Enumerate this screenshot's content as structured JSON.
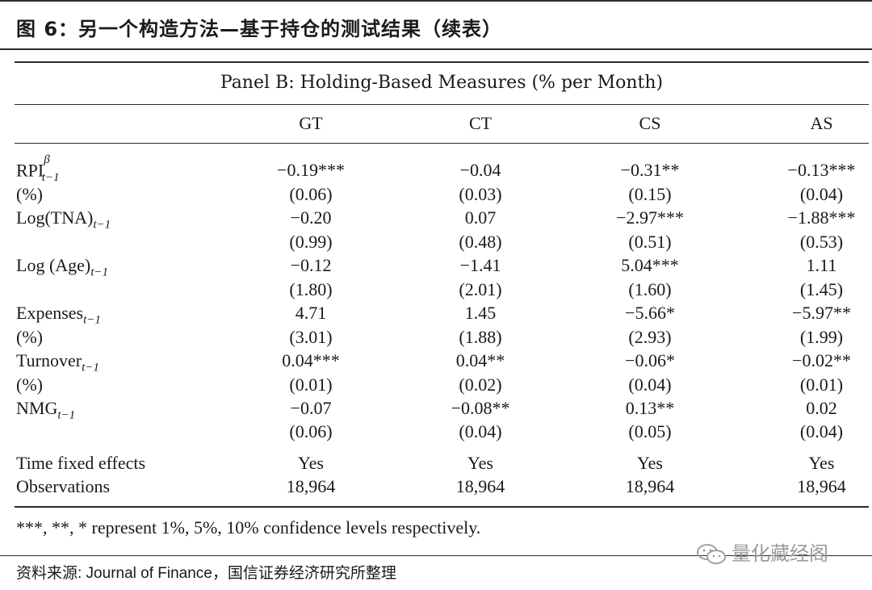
{
  "header": {
    "title": "图 6：另一个构造方法—基于持仓的测试结果（续表）"
  },
  "panel_title": "Panel B: Holding-Based Measures (% per Month)",
  "columns": [
    "GT",
    "CT",
    "CS",
    "AS"
  ],
  "rows": [
    {
      "label": "RPI",
      "sup": "β",
      "sub": "t−1",
      "coef": [
        "−0.19***",
        "−0.04",
        "−0.31**",
        "−0.13***"
      ]
    },
    {
      "label": "(%)",
      "coef": [
        "(0.06)",
        "(0.03)",
        "(0.15)",
        "(0.04)"
      ]
    },
    {
      "label": "Log(TNA)",
      "sub": "t−1",
      "coef": [
        "−0.20",
        "0.07",
        "−2.97***",
        "−1.88***"
      ]
    },
    {
      "label": "",
      "coef": [
        "(0.99)",
        "(0.48)",
        "(0.51)",
        "(0.53)"
      ]
    },
    {
      "label": "Log (Age)",
      "sub": "t−1",
      "coef": [
        "−0.12",
        "−1.41",
        "5.04***",
        "1.11"
      ]
    },
    {
      "label": "",
      "coef": [
        "(1.80)",
        "(2.01)",
        "(1.60)",
        "(1.45)"
      ]
    },
    {
      "label": "Expenses",
      "sub": "t−1",
      "coef": [
        "4.71",
        "1.45",
        "−5.66*",
        "−5.97**"
      ]
    },
    {
      "label": "(%)",
      "coef": [
        "(3.01)",
        "(1.88)",
        "(2.93)",
        "(1.99)"
      ]
    },
    {
      "label": "Turnover",
      "sub": "t−1",
      "coef": [
        "0.04***",
        "0.04**",
        "−0.06*",
        "−0.02**"
      ]
    },
    {
      "label": "(%)",
      "coef": [
        "(0.01)",
        "(0.02)",
        "(0.04)",
        "(0.01)"
      ]
    },
    {
      "label": "NMG",
      "sub": "t−1",
      "coef": [
        "−0.07",
        "−0.08**",
        "0.13**",
        "0.02"
      ]
    },
    {
      "label": "",
      "coef": [
        "(0.06)",
        "(0.04)",
        "(0.05)",
        "(0.04)"
      ]
    },
    {
      "label": "Time fixed effects",
      "coef": [
        "Yes",
        "Yes",
        "Yes",
        "Yes"
      ]
    },
    {
      "label": "Observations",
      "coef": [
        "18,964",
        "18,964",
        "18,964",
        "18,964"
      ]
    }
  ],
  "footnote": "***, **, * represent 1%, 5%, 10% confidence levels respectively.",
  "source": "资料来源: Journal of Finance，国信证券经济研究所整理",
  "watermark": {
    "text": "量化藏经阁",
    "icon": "wechat-icon"
  }
}
